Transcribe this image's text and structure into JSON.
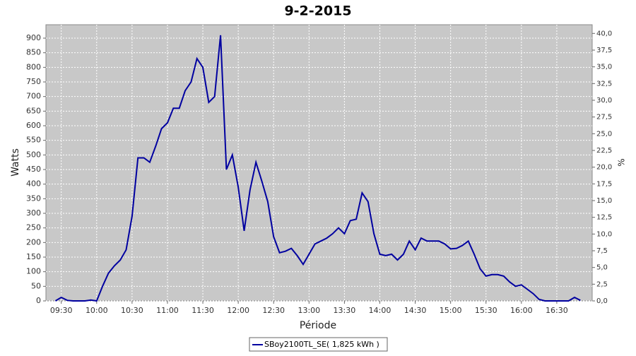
{
  "chart_data": {
    "type": "line",
    "title": "9-2-2015",
    "xlabel": "Période",
    "ylabel": "Watts",
    "y2label": "%",
    "x": [
      "09:25",
      "09:30",
      "09:35",
      "09:40",
      "09:45",
      "09:50",
      "09:55",
      "10:00",
      "10:05",
      "10:10",
      "10:15",
      "10:20",
      "10:25",
      "10:30",
      "10:35",
      "10:40",
      "10:45",
      "10:50",
      "10:55",
      "11:00",
      "11:05",
      "11:10",
      "11:15",
      "11:20",
      "11:25",
      "11:30",
      "11:35",
      "11:40",
      "11:45",
      "11:50",
      "11:55",
      "12:00",
      "12:05",
      "12:10",
      "12:15",
      "12:20",
      "12:25",
      "12:30",
      "12:35",
      "12:40",
      "12:45",
      "12:50",
      "12:55",
      "13:00",
      "13:05",
      "13:10",
      "13:15",
      "13:20",
      "13:25",
      "13:30",
      "13:35",
      "13:40",
      "13:45",
      "13:50",
      "13:55",
      "14:00",
      "14:05",
      "14:10",
      "14:15",
      "14:20",
      "14:25",
      "14:30",
      "14:35",
      "14:40",
      "14:45",
      "14:50",
      "14:55",
      "15:00",
      "15:05",
      "15:10",
      "15:15",
      "15:20",
      "15:25",
      "15:30",
      "15:35",
      "15:40",
      "15:45",
      "15:50",
      "15:55",
      "16:00",
      "16:05",
      "16:10",
      "16:15",
      "16:20",
      "16:25",
      "16:30",
      "16:35",
      "16:40",
      "16:45",
      "16:50"
    ],
    "series": [
      {
        "name": "SBoy2100TL_SE( 1,825 kWh )",
        "color": "#0000a0",
        "values": [
          0,
          12,
          2,
          0,
          0,
          0,
          3,
          0,
          50,
          95,
          120,
          140,
          175,
          290,
          490,
          490,
          475,
          530,
          590,
          610,
          660,
          660,
          720,
          750,
          830,
          800,
          680,
          700,
          910,
          450,
          500,
          390,
          240,
          380,
          475,
          410,
          340,
          220,
          165,
          170,
          180,
          155,
          125,
          160,
          195,
          205,
          215,
          230,
          250,
          230,
          275,
          280,
          370,
          340,
          230,
          160,
          155,
          160,
          140,
          160,
          205,
          175,
          215,
          205,
          205,
          205,
          195,
          178,
          180,
          190,
          205,
          160,
          110,
          85,
          90,
          90,
          85,
          65,
          50,
          55,
          40,
          25,
          5,
          0,
          0,
          0,
          0,
          0,
          12,
          2
        ]
      }
    ],
    "xlim": [
      "09:17",
      "17:00"
    ],
    "xticks": [
      "09:30",
      "10:00",
      "10:30",
      "11:00",
      "11:30",
      "12:00",
      "12:30",
      "13:00",
      "13:30",
      "14:00",
      "14:30",
      "15:00",
      "15:30",
      "16:00",
      "16:30"
    ],
    "ylim": [
      0,
      946
    ],
    "yticks": [
      0,
      50,
      100,
      150,
      200,
      250,
      300,
      350,
      400,
      450,
      500,
      550,
      600,
      650,
      700,
      750,
      800,
      850,
      900
    ],
    "y2lim": [
      0,
      41.3
    ],
    "y2ticks": [
      {
        "value": 0,
        "label": "0,0"
      },
      {
        "value": 2.5,
        "label": "2,5"
      },
      {
        "value": 5,
        "label": "5,0"
      },
      {
        "value": 7.5,
        "label": "7,5"
      },
      {
        "value": 10,
        "label": "10,0"
      },
      {
        "value": 12.5,
        "label": "12,5"
      },
      {
        "value": 15,
        "label": "15,0"
      },
      {
        "value": 17.5,
        "label": "17,5"
      },
      {
        "value": 20,
        "label": "20,0"
      },
      {
        "value": 22.5,
        "label": "22,5"
      },
      {
        "value": 25,
        "label": "25,0"
      },
      {
        "value": 27.5,
        "label": "27,5"
      },
      {
        "value": 30,
        "label": "30,0"
      },
      {
        "value": 32.5,
        "label": "32,5"
      },
      {
        "value": 35,
        "label": "35,0"
      },
      {
        "value": 37.5,
        "label": "37,5"
      },
      {
        "value": 40,
        "label": "40,0"
      }
    ],
    "grid": true
  }
}
